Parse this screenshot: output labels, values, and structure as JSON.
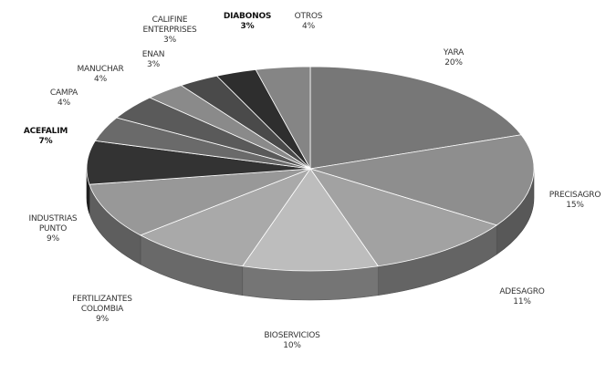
{
  "chart_data": {
    "type": "pie",
    "title": "",
    "slices": [
      {
        "label": "YARA",
        "value_label": "20%",
        "value": 20,
        "color": "#777777"
      },
      {
        "label": "PRECISAGRO",
        "value_label": "15%",
        "value": 15,
        "color": "#8e8e8e"
      },
      {
        "label": "ADESAGRO",
        "value_label": "11%",
        "value": 11,
        "color": "#a2a2a2"
      },
      {
        "label": "BIOSERVICIOS",
        "value_label": "10%",
        "value": 10,
        "color": "#bdbdbd"
      },
      {
        "label": "FERTILIZANTES COLOMBIA",
        "value_label": "9%",
        "value": 9,
        "color": "#a9a9a9"
      },
      {
        "label": "INDUSTRIAS PUNTO",
        "value_label": "9%",
        "value": 9,
        "color": "#989898"
      },
      {
        "label": "ACEFALIM",
        "value_label": "7%",
        "value": 7,
        "color": "#333333"
      },
      {
        "label": "CAMPA",
        "value_label": "4%",
        "value": 4,
        "color": "#6a6a6a"
      },
      {
        "label": "MANUCHAR",
        "value_label": "4%",
        "value": 4,
        "color": "#5a5a5a"
      },
      {
        "label": "ENAN",
        "value_label": "3%",
        "value": 3,
        "color": "#8a8a8a"
      },
      {
        "label": "CALIFINE ENTERPRISES",
        "value_label": "3%",
        "value": 3,
        "color": "#4a4a4a"
      },
      {
        "label": "DIABONOS",
        "value_label": "3%",
        "value": 3,
        "color": "#2e2e2e"
      },
      {
        "label": "OTROS",
        "value_label": "4%",
        "value": 4,
        "color": "#858585"
      }
    ],
    "legend": "none"
  }
}
